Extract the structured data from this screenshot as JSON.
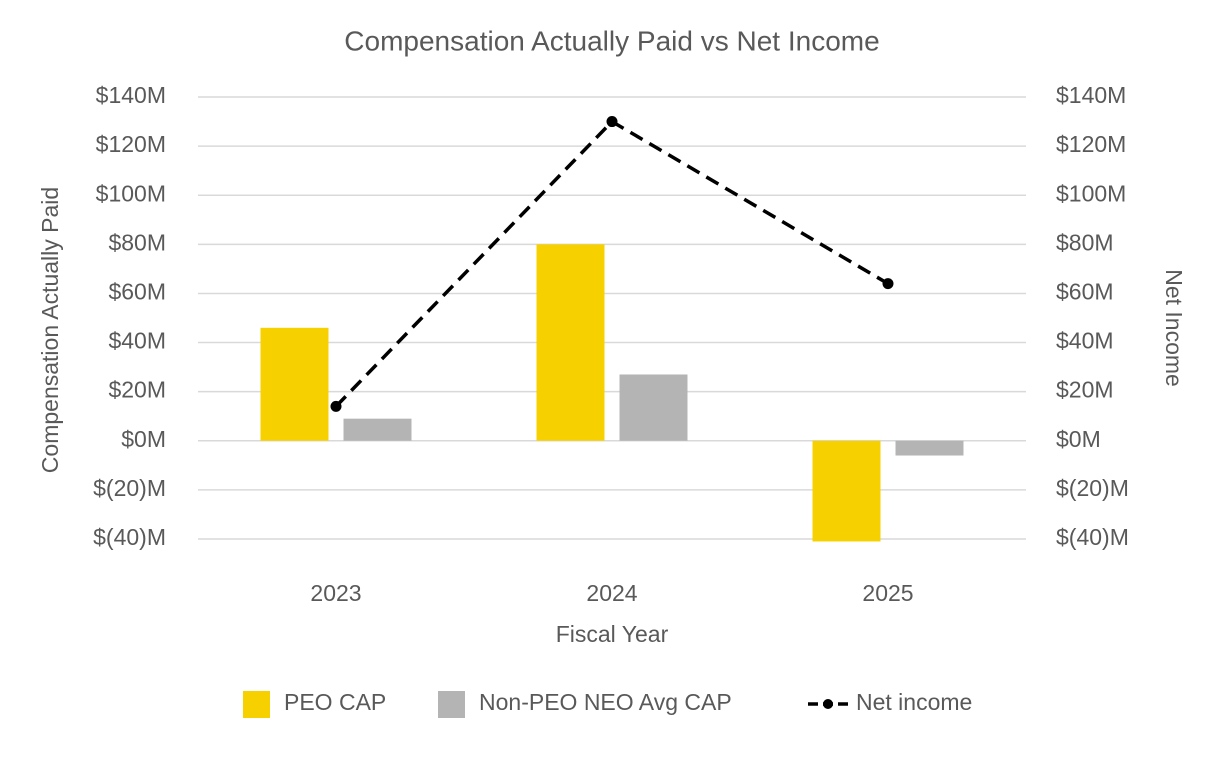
{
  "chart_data": {
    "type": "bar",
    "title": "Compensation Actually Paid vs Net Income",
    "x_label": "Fiscal Year",
    "y_label": "Compensation Actually Paid",
    "y2_label": "Net Income",
    "categories": [
      "2023",
      "2024",
      "2025"
    ],
    "series": [
      {
        "name": "PEO CAP",
        "type": "bar",
        "color": "#f7d000",
        "values": [
          46,
          80,
          -41
        ]
      },
      {
        "name": "Non-PEO NEO Avg CAP",
        "type": "bar",
        "color": "#b4b4b4",
        "values": [
          9,
          27,
          -6
        ]
      },
      {
        "name": "Net income",
        "type": "line",
        "axis": "y2",
        "color": "#000000",
        "values": [
          14,
          130,
          64
        ]
      }
    ],
    "ylim": [
      -40,
      140
    ],
    "yticks": [
      {
        "value": -40,
        "label": "$(40)M"
      },
      {
        "value": -20,
        "label": "$(20)M"
      },
      {
        "value": 0,
        "label": "$0M"
      },
      {
        "value": 20,
        "label": "$20M"
      },
      {
        "value": 40,
        "label": "$40M"
      },
      {
        "value": 60,
        "label": "$60M"
      },
      {
        "value": 80,
        "label": "$80M"
      },
      {
        "value": 100,
        "label": "$100M"
      },
      {
        "value": 120,
        "label": "$120M"
      },
      {
        "value": 140,
        "label": "$140M"
      }
    ],
    "y2lim": [
      -40,
      140
    ],
    "y2ticks": [
      {
        "value": -40,
        "label": "$(40)M"
      },
      {
        "value": -20,
        "label": "$(20)M"
      },
      {
        "value": 0,
        "label": "$0M"
      },
      {
        "value": 20,
        "label": "$20M"
      },
      {
        "value": 40,
        "label": "$40M"
      },
      {
        "value": 60,
        "label": "$60M"
      },
      {
        "value": 80,
        "label": "$80M"
      },
      {
        "value": 100,
        "label": "$100M"
      },
      {
        "value": 120,
        "label": "$120M"
      },
      {
        "value": 140,
        "label": "$140M"
      }
    ],
    "grid": true,
    "legend": "bottom"
  }
}
